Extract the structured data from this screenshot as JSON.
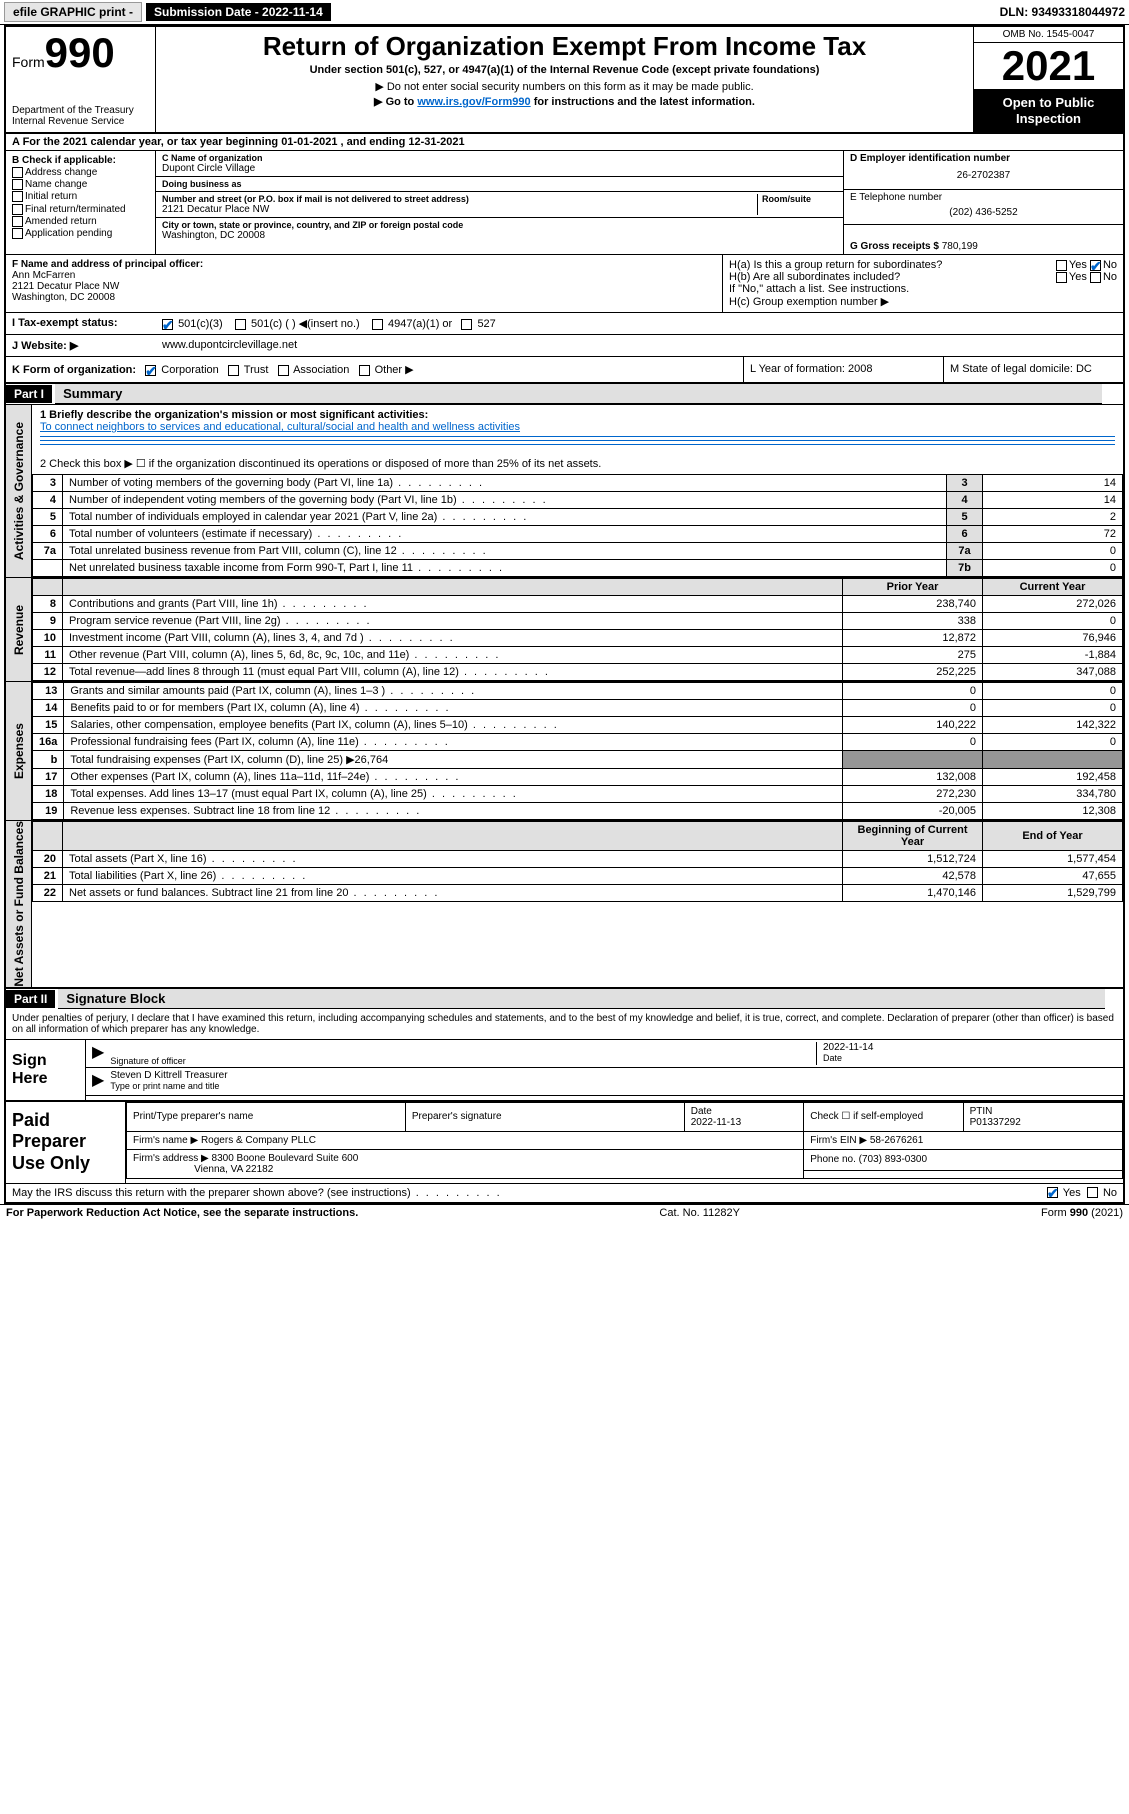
{
  "topbar": {
    "efile": "efile GRAPHIC print -",
    "submission_label": "Submission Date - 2022-11-14",
    "dln": "DLN: 93493318044972"
  },
  "header": {
    "form_prefix": "Form",
    "form_number": "990",
    "dept": "Department of the Treasury",
    "irs": "Internal Revenue Service",
    "title": "Return of Organization Exempt From Income Tax",
    "subtitle": "Under section 501(c), 527, or 4947(a)(1) of the Internal Revenue Code (except private foundations)",
    "note1": "▶ Do not enter social security numbers on this form as it may be made public.",
    "note2_pre": "▶ Go to ",
    "note2_link": "www.irs.gov/Form990",
    "note2_post": " for instructions and the latest information.",
    "omb": "OMB No. 1545-0047",
    "year": "2021",
    "open": "Open to Public Inspection"
  },
  "rowA": {
    "text": "A For the 2021 calendar year, or tax year beginning 01-01-2021    , and ending 12-31-2021"
  },
  "secB": {
    "title": "B Check if applicable:",
    "opts": [
      "Address change",
      "Name change",
      "Initial return",
      "Final return/terminated",
      "Amended return",
      "Application pending"
    ]
  },
  "secC": {
    "name_lbl": "C Name of organization",
    "name": "Dupont Circle Village",
    "dba_lbl": "Doing business as",
    "dba": "",
    "addr_lbl": "Number and street (or P.O. box if mail is not delivered to street address)",
    "room_lbl": "Room/suite",
    "addr": "2121 Decatur Place NW",
    "city_lbl": "City or town, state or province, country, and ZIP or foreign postal code",
    "city": "Washington, DC  20008"
  },
  "secD": {
    "ein_lbl": "D Employer identification number",
    "ein": "26-2702387",
    "tel_lbl": "E Telephone number",
    "tel": "(202) 436-5252",
    "gross_lbl": "G Gross receipts $",
    "gross": "780,199"
  },
  "secF": {
    "lbl": "F Name and address of principal officer:",
    "name": "Ann McFarren",
    "addr1": "2121 Decatur Place NW",
    "addr2": "Washington, DC  20008"
  },
  "secH": {
    "a_lbl": "H(a)  Is this a group return for subordinates?",
    "a_yes": "Yes",
    "a_no": "No",
    "b_lbl": "H(b)  Are all subordinates included?",
    "b_note": "If \"No,\" attach a list. See instructions.",
    "c_lbl": "H(c)  Group exemption number ▶"
  },
  "secI": {
    "lbl": "I    Tax-exempt status:",
    "opt1": "501(c)(3)",
    "opt2": "501(c) (  ) ◀(insert no.)",
    "opt3": "4947(a)(1) or",
    "opt4": "527"
  },
  "secJ": {
    "lbl": "J   Website: ▶",
    "val": "www.dupontcirclevillage.net"
  },
  "secK": {
    "lbl": "K Form of organization:",
    "opts": [
      "Corporation",
      "Trust",
      "Association",
      "Other ▶"
    ],
    "L": "L Year of formation: 2008",
    "M": "M State of legal domicile: DC"
  },
  "part1": {
    "hdr": "Part I",
    "title": "Summary",
    "line1_lbl": "1   Briefly describe the organization's mission or most significant activities:",
    "line1_val": "To connect neighbors to services and educational, cultural/social and health and wellness activities",
    "line2": "2   Check this box ▶ ☐  if the organization discontinued its operations or disposed of more than 25% of its net assets.",
    "gov_lines": [
      {
        "n": "3",
        "d": "Number of voting members of the governing body (Part VI, line 1a)",
        "b": "3",
        "v": "14"
      },
      {
        "n": "4",
        "d": "Number of independent voting members of the governing body (Part VI, line 1b)",
        "b": "4",
        "v": "14"
      },
      {
        "n": "5",
        "d": "Total number of individuals employed in calendar year 2021 (Part V, line 2a)",
        "b": "5",
        "v": "2"
      },
      {
        "n": "6",
        "d": "Total number of volunteers (estimate if necessary)",
        "b": "6",
        "v": "72"
      },
      {
        "n": "7a",
        "d": "Total unrelated business revenue from Part VIII, column (C), line 12",
        "b": "7a",
        "v": "0"
      },
      {
        "n": "",
        "d": "Net unrelated business taxable income from Form 990-T, Part I, line 11",
        "b": "7b",
        "v": "0"
      }
    ],
    "col_prior": "Prior Year",
    "col_curr": "Current Year",
    "rev_lines": [
      {
        "n": "8",
        "d": "Contributions and grants (Part VIII, line 1h)",
        "p": "238,740",
        "c": "272,026"
      },
      {
        "n": "9",
        "d": "Program service revenue (Part VIII, line 2g)",
        "p": "338",
        "c": "0"
      },
      {
        "n": "10",
        "d": "Investment income (Part VIII, column (A), lines 3, 4, and 7d )",
        "p": "12,872",
        "c": "76,946"
      },
      {
        "n": "11",
        "d": "Other revenue (Part VIII, column (A), lines 5, 6d, 8c, 9c, 10c, and 11e)",
        "p": "275",
        "c": "-1,884"
      },
      {
        "n": "12",
        "d": "Total revenue—add lines 8 through 11 (must equal Part VIII, column (A), line 12)",
        "p": "252,225",
        "c": "347,088"
      }
    ],
    "exp_lines": [
      {
        "n": "13",
        "d": "Grants and similar amounts paid (Part IX, column (A), lines 1–3 )",
        "p": "0",
        "c": "0"
      },
      {
        "n": "14",
        "d": "Benefits paid to or for members (Part IX, column (A), line 4)",
        "p": "0",
        "c": "0"
      },
      {
        "n": "15",
        "d": "Salaries, other compensation, employee benefits (Part IX, column (A), lines 5–10)",
        "p": "140,222",
        "c": "142,322"
      },
      {
        "n": "16a",
        "d": "Professional fundraising fees (Part IX, column (A), line 11e)",
        "p": "0",
        "c": "0"
      },
      {
        "n": "b",
        "d": "Total fundraising expenses (Part IX, column (D), line 25) ▶26,764",
        "p": "",
        "c": "",
        "shade": true
      },
      {
        "n": "17",
        "d": "Other expenses (Part IX, column (A), lines 11a–11d, 11f–24e)",
        "p": "132,008",
        "c": "192,458"
      },
      {
        "n": "18",
        "d": "Total expenses. Add lines 13–17 (must equal Part IX, column (A), line 25)",
        "p": "272,230",
        "c": "334,780"
      },
      {
        "n": "19",
        "d": "Revenue less expenses. Subtract line 18 from line 12",
        "p": "-20,005",
        "c": "12,308"
      }
    ],
    "col_beg": "Beginning of Current Year",
    "col_end": "End of Year",
    "na_lines": [
      {
        "n": "20",
        "d": "Total assets (Part X, line 16)",
        "p": "1,512,724",
        "c": "1,577,454"
      },
      {
        "n": "21",
        "d": "Total liabilities (Part X, line 26)",
        "p": "42,578",
        "c": "47,655"
      },
      {
        "n": "22",
        "d": "Net assets or fund balances. Subtract line 21 from line 20",
        "p": "1,470,146",
        "c": "1,529,799"
      }
    ]
  },
  "part2": {
    "hdr": "Part II",
    "title": "Signature Block",
    "decl": "Under penalties of perjury, I declare that I have examined this return, including accompanying schedules and statements, and to the best of my knowledge and belief, it is true, correct, and complete. Declaration of preparer (other than officer) is based on all information of which preparer has any knowledge."
  },
  "sign": {
    "left": "Sign Here",
    "sig_lbl": "Signature of officer",
    "date_lbl": "Date",
    "date": "2022-11-14",
    "name": "Steven D Kittrell Treasurer",
    "name_lbl": "Type or print name and title"
  },
  "prep": {
    "left": "Paid Preparer Use Only",
    "c1": "Print/Type preparer's name",
    "c2": "Preparer's signature",
    "c3": "Date",
    "c3v": "2022-11-13",
    "c4": "Check ☐ if self-employed",
    "c5": "PTIN",
    "c5v": "P01337292",
    "firm_lbl": "Firm's name    ▶",
    "firm": "Rogers & Company PLLC",
    "ein_lbl": "Firm's EIN ▶",
    "ein": "58-2676261",
    "addr_lbl": "Firm's address ▶",
    "addr1": "8300 Boone Boulevard Suite 600",
    "addr2": "Vienna, VA  22182",
    "phone_lbl": "Phone no.",
    "phone": "(703) 893-0300"
  },
  "bottom": {
    "q": "May the IRS discuss this return with the preparer shown above? (see instructions)",
    "yes": "Yes",
    "no": "No",
    "pra": "For Paperwork Reduction Act Notice, see the separate instructions.",
    "cat": "Cat. No. 11282Y",
    "form": "Form 990 (2021)"
  },
  "vlabels": {
    "gov": "Activities & Governance",
    "rev": "Revenue",
    "exp": "Expenses",
    "na": "Net Assets or Fund Balances"
  },
  "colors": {
    "link": "#0066cc",
    "shade_hdr": "#e0e0e0",
    "shade_dark": "#969696"
  }
}
